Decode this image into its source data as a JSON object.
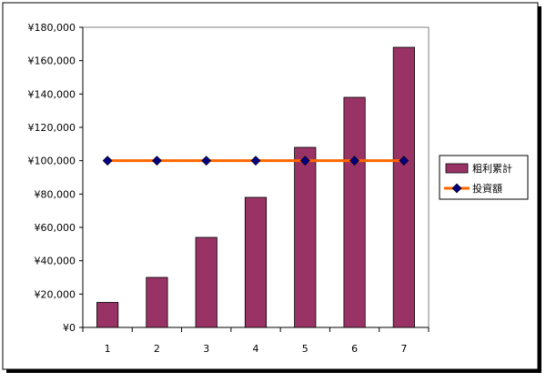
{
  "chart_data": {
    "type": "bar",
    "categories": [
      "1",
      "2",
      "3",
      "4",
      "5",
      "6",
      "7"
    ],
    "series": [
      {
        "name": "粗利累計",
        "type": "bar",
        "values": [
          15000,
          30000,
          54000,
          78000,
          108000,
          138000,
          168000
        ],
        "color": "#993366"
      },
      {
        "name": "投資額",
        "type": "line",
        "values": [
          100000,
          100000,
          100000,
          100000,
          100000,
          100000,
          100000
        ],
        "color": "#ff6600",
        "marker_color": "#000080"
      }
    ],
    "y_ticks": [
      "¥0",
      "¥20,000",
      "¥40,000",
      "¥60,000",
      "¥80,000",
      "¥100,000",
      "¥120,000",
      "¥140,000",
      "¥160,000",
      "¥180,000"
    ],
    "ylim": [
      0,
      180000
    ],
    "grid": false,
    "legend_position": "right",
    "colors": {
      "plot_background": "#ffffff",
      "frame_border": "#000000",
      "frame_shadow": "#000000"
    }
  }
}
